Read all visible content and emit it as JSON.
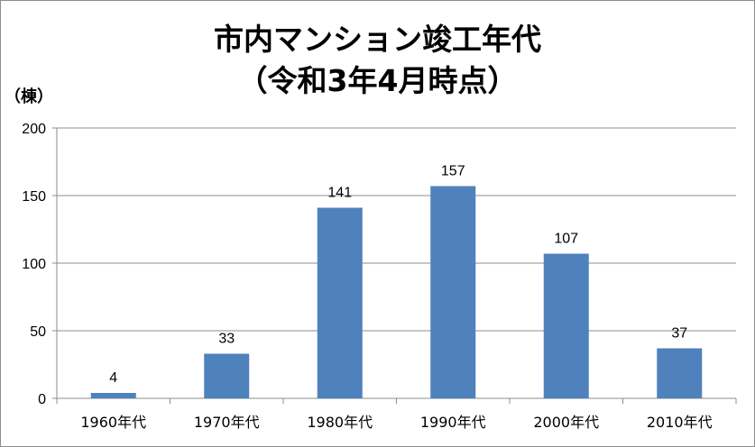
{
  "chart_data": {
    "type": "bar",
    "title_line1": "市内マンション竣工年代",
    "title_line2": "（令和3年4月時点）",
    "ylabel": "（棟）",
    "xlabel": "",
    "categories": [
      "1960年代",
      "1970年代",
      "1980年代",
      "1990年代",
      "2000年代",
      "2010年代"
    ],
    "values": [
      4,
      33,
      141,
      157,
      107,
      37
    ],
    "ylim": [
      0,
      200
    ],
    "yticks": [
      0,
      50,
      100,
      150,
      200
    ],
    "grid": true,
    "legend": "none",
    "bar_color": "#4f81bd",
    "grid_color": "#8c8c8c"
  }
}
